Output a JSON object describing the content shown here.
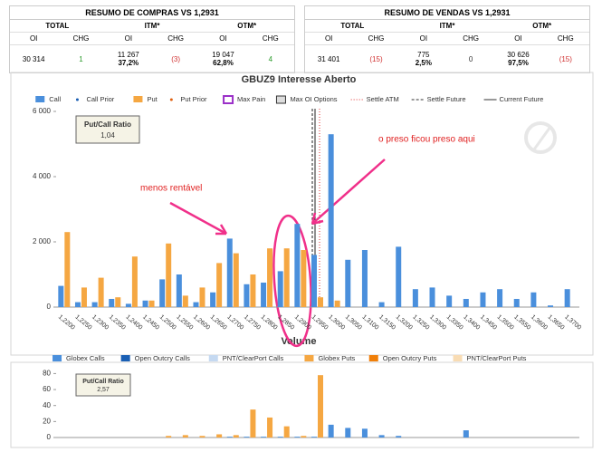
{
  "summary_tables": [
    {
      "title": "RESUMO DE COMPRAS VS 1,2931",
      "groups": [
        "TOTAL",
        "ITM*",
        "OTM*"
      ],
      "columns": [
        "OI",
        "CHG",
        "OI",
        "CHG",
        "OI",
        "CHG"
      ],
      "cells": [
        [
          "30 314"
        ],
        [
          "1"
        ],
        [
          "11 267",
          "37,2%"
        ],
        [
          "(3)"
        ],
        [
          "19 047",
          "62,8%"
        ],
        [
          "4"
        ]
      ]
    },
    {
      "title": "RESUMO DE VENDAS VS 1,2931",
      "groups": [
        "TOTAL",
        "ITM*",
        "OTM*"
      ],
      "columns": [
        "OI",
        "CHG",
        "OI",
        "CHG",
        "OI",
        "CHG"
      ],
      "cells": [
        [
          "31 401"
        ],
        [
          "(15)"
        ],
        [
          "775",
          "2,5%"
        ],
        [
          "0"
        ],
        [
          "30 626",
          "97,5%"
        ],
        [
          "(15)"
        ]
      ]
    }
  ],
  "chart_data": [
    {
      "type": "bar",
      "title": "GBUZ9 Interesse Aberto",
      "categories": [
        "1,2200",
        "1,2250",
        "1,2300",
        "1,2350",
        "1,2400",
        "1,2450",
        "1,2500",
        "1,2550",
        "1,2600",
        "1,2650",
        "1,2700",
        "1,2750",
        "1,2800",
        "1,2850",
        "1,2900",
        "1,2950",
        "1,3000",
        "1,3050",
        "1,3100",
        "1,3150",
        "1,3200",
        "1,3250",
        "1,3300",
        "1,3350",
        "1,3400",
        "1,3450",
        "1,3500",
        "1,3550",
        "1,3600",
        "1,3650",
        "1,3700"
      ],
      "series": [
        {
          "name": "Call",
          "color": "#4a8fdc",
          "values": [
            650,
            150,
            150,
            250,
            100,
            200,
            850,
            1000,
            150,
            450,
            2100,
            700,
            750,
            1100,
            2550,
            1600,
            5300,
            1450,
            1750,
            150,
            1850,
            550,
            600,
            350,
            250,
            450,
            550,
            250,
            450,
            50,
            550
          ]
        },
        {
          "name": "Put",
          "color": "#f5a742",
          "values": [
            2300,
            600,
            900,
            300,
            1550,
            200,
            1950,
            350,
            600,
            1350,
            1650,
            1000,
            1800,
            1800,
            1750,
            300,
            200,
            0,
            0,
            0,
            0,
            0,
            0,
            0,
            0,
            0,
            0,
            0,
            0,
            0,
            0
          ]
        }
      ],
      "legend_extra": [
        {
          "name": "Call Prior",
          "color": "#1a5fb4",
          "marker": "dot"
        },
        {
          "name": "Put Prior",
          "color": "#e06010",
          "marker": "dot"
        },
        {
          "name": "Max Pain",
          "color": "#9b30c8",
          "marker": "box"
        },
        {
          "name": "Max OI Options",
          "color": "#333333",
          "marker": "hatch"
        },
        {
          "name": "Settle ATM",
          "color": "#e03030",
          "marker": "dotted"
        },
        {
          "name": "Settle Future",
          "color": "#333333",
          "marker": "dashed"
        },
        {
          "name": "Current Future",
          "color": "#333333",
          "marker": "line"
        }
      ],
      "ylim": [
        0,
        6000
      ],
      "yticks": [
        0,
        {
          "value": 2000,
          "label": "2 000"
        },
        {
          "value": 4000,
          "label": "4 000"
        },
        {
          "value": 6000,
          "label": "6 000"
        }
      ],
      "ratio_label": "Put/Call Ratio",
      "ratio_value": "1,04",
      "annotations": [
        "menos rentável",
        "o preso ficou preso aqui"
      ]
    },
    {
      "type": "bar",
      "title": "Volume",
      "series": [
        {
          "name": "Globex Calls",
          "color": "#4a8fdc",
          "values": [
            0,
            0,
            0,
            0,
            0,
            0,
            0,
            0,
            0,
            0,
            1,
            1,
            1,
            1,
            1,
            1,
            16,
            12,
            11,
            3,
            2,
            0,
            0,
            0,
            9,
            0,
            0,
            0,
            0,
            0,
            0
          ]
        },
        {
          "name": "Globex Puts",
          "color": "#f5a742",
          "values": [
            0,
            0,
            0,
            0,
            0,
            0,
            2,
            3,
            2,
            4,
            3,
            35,
            25,
            14,
            2,
            78,
            0,
            0,
            0,
            0,
            0,
            0,
            0,
            0,
            0,
            0,
            0,
            0,
            0,
            0,
            0
          ]
        }
      ],
      "legend_extra": [
        {
          "name": "Open Outcry Calls",
          "color": "#1a5fb4",
          "after": 0
        },
        {
          "name": "PNT/ClearPort Calls",
          "color": "#c5d9f1",
          "after": 0
        },
        {
          "name": "Open Outcry Puts",
          "color": "#f07f09",
          "after": 1
        },
        {
          "name": "PNT/ClearPort Puts",
          "color": "#f8dcb4",
          "after": 1
        }
      ],
      "ylim": [
        0,
        85
      ],
      "yticks": [
        0,
        20,
        40,
        60,
        80
      ],
      "ratio_label": "Put/Call Ratio",
      "ratio_value": "2,57"
    }
  ]
}
